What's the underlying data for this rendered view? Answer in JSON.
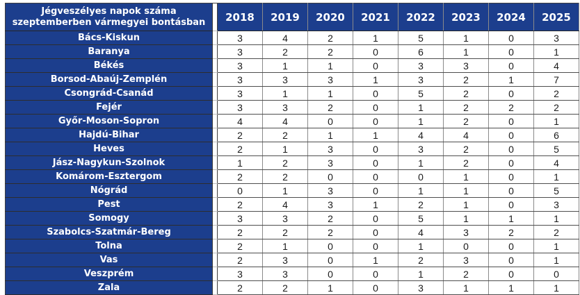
{
  "colors": {
    "header_bg": "#1c3e8d",
    "header_text": "#ffffff",
    "value_text": "#1b1b1b",
    "grid_vertical": "#8a8a8a",
    "grid_horizontal": "#4d4d4d",
    "outer_border": "#3f3f3f"
  },
  "table": {
    "title_lines": [
      "Jégveszélyes napok száma",
      "szeptemberben vármegyei bontásban"
    ]
  },
  "chart_data": {
    "type": "table",
    "title": "Jégveszélyes napok száma szeptemberben vármegyei bontásban",
    "columns": [
      "2018",
      "2019",
      "2020",
      "2021",
      "2022",
      "2023",
      "2024",
      "2025"
    ],
    "rows": [
      {
        "label": "Bács-Kiskun",
        "values": [
          3,
          4,
          2,
          1,
          5,
          1,
          0,
          3
        ]
      },
      {
        "label": "Baranya",
        "values": [
          3,
          2,
          2,
          0,
          6,
          1,
          0,
          1
        ]
      },
      {
        "label": "Békés",
        "values": [
          3,
          1,
          1,
          0,
          3,
          3,
          0,
          4
        ]
      },
      {
        "label": "Borsod-Abaúj-Zemplén",
        "values": [
          3,
          3,
          3,
          1,
          3,
          2,
          1,
          7
        ]
      },
      {
        "label": "Csongrád-Csanád",
        "values": [
          3,
          1,
          1,
          0,
          5,
          2,
          0,
          2
        ]
      },
      {
        "label": "Fejér",
        "values": [
          3,
          3,
          2,
          0,
          1,
          2,
          2,
          2
        ]
      },
      {
        "label": "Győr-Moson-Sopron",
        "values": [
          4,
          4,
          0,
          0,
          1,
          2,
          0,
          1
        ]
      },
      {
        "label": "Hajdú-Bihar",
        "values": [
          2,
          2,
          1,
          1,
          4,
          4,
          0,
          6
        ]
      },
      {
        "label": "Heves",
        "values": [
          2,
          1,
          3,
          0,
          3,
          2,
          0,
          5
        ]
      },
      {
        "label": "Jász-Nagykun-Szolnok",
        "values": [
          1,
          2,
          3,
          0,
          1,
          2,
          0,
          4
        ]
      },
      {
        "label": "Komárom-Esztergom",
        "values": [
          2,
          2,
          0,
          0,
          0,
          1,
          0,
          1
        ]
      },
      {
        "label": "Nógrád",
        "values": [
          0,
          1,
          3,
          0,
          1,
          1,
          0,
          5
        ]
      },
      {
        "label": "Pest",
        "values": [
          2,
          4,
          3,
          1,
          2,
          1,
          0,
          3
        ]
      },
      {
        "label": "Somogy",
        "values": [
          3,
          3,
          2,
          0,
          5,
          1,
          1,
          1
        ]
      },
      {
        "label": "Szabolcs-Szatmár-Bereg",
        "values": [
          2,
          2,
          2,
          0,
          4,
          3,
          2,
          2
        ]
      },
      {
        "label": "Tolna",
        "values": [
          2,
          1,
          0,
          0,
          1,
          0,
          0,
          1
        ]
      },
      {
        "label": "Vas",
        "values": [
          2,
          3,
          0,
          1,
          2,
          3,
          0,
          1
        ]
      },
      {
        "label": "Veszprém",
        "values": [
          3,
          3,
          0,
          0,
          1,
          2,
          0,
          0
        ]
      },
      {
        "label": "Zala",
        "values": [
          2,
          2,
          1,
          0,
          3,
          1,
          1,
          1
        ]
      }
    ]
  }
}
